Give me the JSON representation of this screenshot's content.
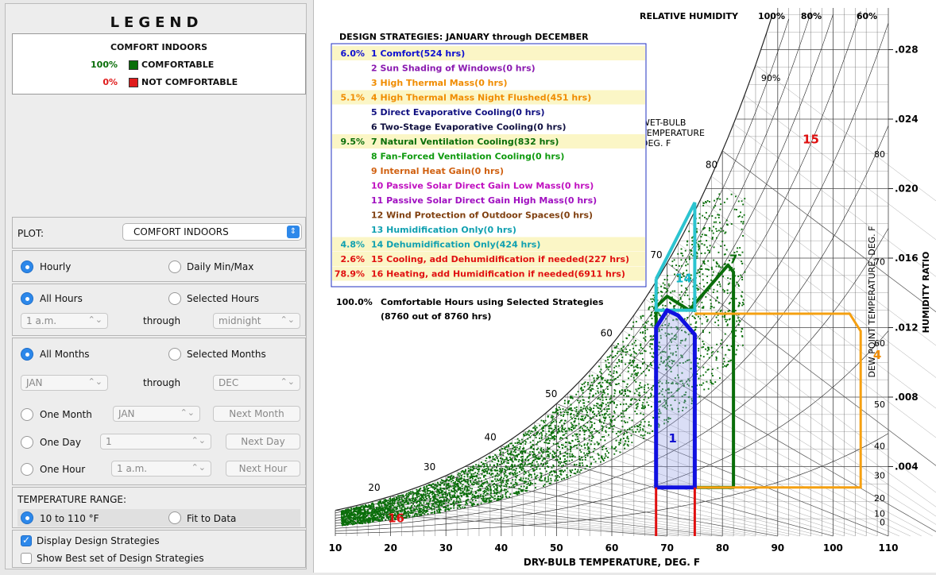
{
  "legend": {
    "title": "LEGEND",
    "heading": "COMFORT INDOORS",
    "rows": [
      {
        "pct": "100%",
        "label": "COMFORTABLE",
        "color": "#0a6e0a"
      },
      {
        "pct": "0%",
        "label": "NOT COMFORTABLE",
        "color": "#e01b1b"
      }
    ]
  },
  "controls": {
    "plot_label": "PLOT:",
    "plot_value": "COMFORT INDOORS",
    "hourly": "Hourly",
    "daily": "Daily Min/Max",
    "all_hours": "All Hours",
    "selected_hours": "Selected Hours",
    "hour_from": "1 a.m.",
    "through": "through",
    "hour_to": "midnight",
    "all_months": "All Months",
    "selected_months": "Selected Months",
    "month_from": "JAN",
    "month_to": "DEC",
    "one_month": "One Month",
    "one_month_val": "JAN",
    "next_month": "Next Month",
    "one_day": "One Day",
    "one_day_val": "1",
    "next_day": "Next Day",
    "one_hour": "One Hour",
    "one_hour_val": "1 a.m.",
    "next_hour": "Next Hour",
    "temp_range_label": "TEMPERATURE RANGE:",
    "temp_range_1": "10 to 110 °F",
    "temp_range_2": "Fit to Data",
    "display_strategies": "Display Design Strategies",
    "show_best": "Show Best set of Design Strategies"
  },
  "chart_data": {
    "type": "scatter",
    "title": "DESIGN STRATEGIES:  JANUARY through DECEMBER",
    "xlabel": "DRY-BULB TEMPERATURE, DEG. F",
    "ylabel": "HUMIDITY RATIO",
    "xlim": [
      10,
      110
    ],
    "ylim": [
      0,
      0.03
    ],
    "x_ticks": [
      "10",
      "20",
      "30",
      "40",
      "50",
      "60",
      "70",
      "80",
      "90",
      "100",
      "110"
    ],
    "y_ticks": [
      ".004",
      ".008",
      ".012",
      ".016",
      ".020",
      ".024",
      ".028"
    ],
    "rh_label": "RELATIVE HUMIDITY",
    "rh_top_labels": [
      "100%",
      "80%",
      "60%"
    ],
    "rh_90": "90%",
    "wet_bulb_label": [
      "WET-BULB",
      "TEMPERATURE",
      "DEG. F"
    ],
    "wet_bulb_labels": [
      "20",
      "30",
      "40",
      "50",
      "60",
      "70",
      "80"
    ],
    "dew_point_label": "DEW POINT TEMPERATURE, DEG. F",
    "dew_point_labels": [
      "80",
      "70",
      "60",
      "50",
      "40",
      "30",
      "20",
      "10",
      "0"
    ],
    "strategies": [
      {
        "pct": "6.0%",
        "text": "1 Comfort(524 hrs)",
        "color": "#1010d0",
        "hl": true
      },
      {
        "pct": "",
        "text": "2 Sun Shading of Windows(0 hrs)",
        "color": "#8a1ab0",
        "hl": false
      },
      {
        "pct": "",
        "text": "3 High Thermal Mass(0 hrs)",
        "color": "#f08c00",
        "hl": false
      },
      {
        "pct": "5.1%",
        "text": "4 High Thermal Mass Night Flushed(451 hrs)",
        "color": "#f08c00",
        "hl": true
      },
      {
        "pct": "",
        "text": "5 Direct Evaporative Cooling(0 hrs)",
        "color": "#101080",
        "hl": false
      },
      {
        "pct": "",
        "text": "6 Two-Stage Evaporative Cooling(0 hrs)",
        "color": "#101040",
        "hl": false
      },
      {
        "pct": "9.5%",
        "text": "7 Natural Ventilation Cooling(832 hrs)",
        "color": "#0a6e0a",
        "hl": true
      },
      {
        "pct": "",
        "text": "8 Fan-Forced Ventilation Cooling(0 hrs)",
        "color": "#0e9a0e",
        "hl": false
      },
      {
        "pct": "",
        "text": "9 Internal Heat Gain(0 hrs)",
        "color": "#d06010",
        "hl": false
      },
      {
        "pct": "",
        "text": "10 Passive Solar Direct Gain Low Mass(0 hrs)",
        "color": "#c010c0",
        "hl": false
      },
      {
        "pct": "",
        "text": "11 Passive Solar Direct Gain High Mass(0 hrs)",
        "color": "#a010c0",
        "hl": false
      },
      {
        "pct": "",
        "text": "12 Wind Protection of Outdoor Spaces(0 hrs)",
        "color": "#804010",
        "hl": false
      },
      {
        "pct": "",
        "text": "13 Humidification Only(0 hrs)",
        "color": "#10a0b0",
        "hl": false
      },
      {
        "pct": "4.8%",
        "text": "14 Dehumidification Only(424 hrs)",
        "color": "#10a0b0",
        "hl": true
      },
      {
        "pct": "2.6%",
        "text": "15 Cooling, add Dehumidification if needed(227 hrs)",
        "color": "#e01010",
        "hl": true
      },
      {
        "pct": "78.9%",
        "text": "16 Heating, add Humidification if needed(6911 hrs)",
        "color": "#e01010",
        "hl": true
      }
    ],
    "summary_pct": "100.0%",
    "summary_text": "Comfortable Hours using Selected Strategies",
    "summary_sub": "(8760 out of 8760 hrs)",
    "zone_labels": [
      {
        "text": "1",
        "color": "#1010d0"
      },
      {
        "text": "4",
        "color": "#f08c00"
      },
      {
        "text": "7",
        "color": "#0a6e0a"
      },
      {
        "text": "14",
        "color": "#10b8c8"
      },
      {
        "text": "15",
        "color": "#e01010"
      },
      {
        "text": "16",
        "color": "#e01010"
      }
    ]
  }
}
